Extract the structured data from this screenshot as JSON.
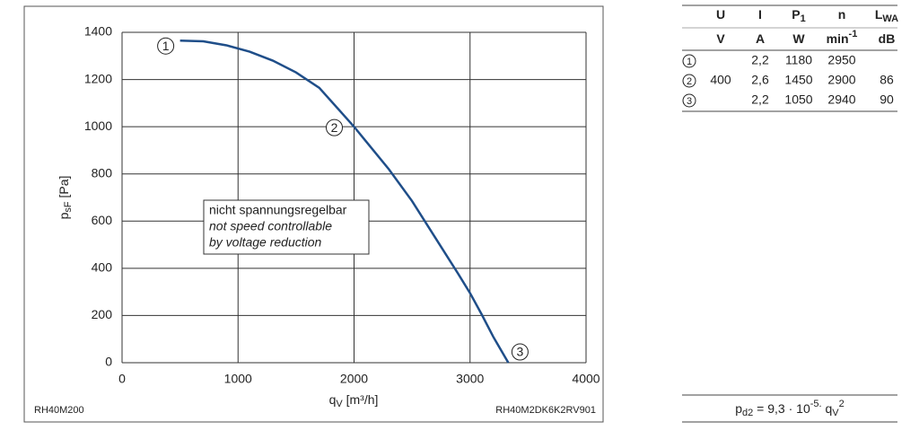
{
  "chart_data": {
    "type": "line",
    "x_label": {
      "main": "q",
      "sub": "V",
      "unit": " [m³/h]"
    },
    "y_label": {
      "main": "p",
      "sub": "sF",
      "unit": " [Pa]"
    },
    "x": [
      500,
      700,
      900,
      1100,
      1300,
      1500,
      1700,
      1900,
      2000,
      2100,
      2300,
      2500,
      2700,
      2900,
      3000,
      3100,
      3200,
      3330
    ],
    "values": [
      1365,
      1362,
      1345,
      1318,
      1280,
      1230,
      1165,
      1055,
      1000,
      940,
      820,
      685,
      530,
      375,
      295,
      205,
      110,
      0
    ],
    "color": "#1f4e89",
    "xlim": [
      0,
      4000
    ],
    "xticks": [
      0,
      1000,
      2000,
      3000,
      4000
    ],
    "ylim": [
      0,
      1400
    ],
    "yticks": [
      0,
      200,
      400,
      600,
      800,
      1000,
      1200,
      1400
    ],
    "grid": true,
    "points": [
      {
        "label": "1",
        "x": 500,
        "y": 1365
      },
      {
        "label": "2",
        "x": 2000,
        "y": 1000
      },
      {
        "label": "3",
        "x": 3330,
        "y": 0
      }
    ],
    "annotation": [
      "nicht spannungsregelbar",
      "not speed controllable",
      "by voltage reduction"
    ],
    "footer_left": "RH40M200",
    "footer_right": "RH40M2DK6K2RV901"
  },
  "table": {
    "header": [
      {
        "base": "U",
        "sub": ""
      },
      {
        "base": "I",
        "sub": ""
      },
      {
        "base": "P",
        "sub": "1"
      },
      {
        "base": "n",
        "sub": ""
      },
      {
        "base": "L",
        "sub": "WA"
      }
    ],
    "units": [
      {
        "base": "V",
        "sup": ""
      },
      {
        "base": "A",
        "sup": ""
      },
      {
        "base": "W",
        "sup": ""
      },
      {
        "base": "min",
        "sup": "-1"
      },
      {
        "base": "dB",
        "sup": ""
      }
    ],
    "rows": [
      [
        "1",
        "",
        "2,2",
        "1180",
        "2950",
        ""
      ],
      [
        "2",
        "400",
        "2,6",
        "1450",
        "2900",
        "86"
      ],
      [
        "3",
        "",
        "2,2",
        "1050",
        "2940",
        "90"
      ]
    ]
  },
  "formula": {
    "p": "p",
    "p_sub": "d2",
    "mid": " = 9,3 · 10",
    "exp": "-5.",
    "q": " q",
    "q_sub": "V",
    "q_sup": "2"
  }
}
